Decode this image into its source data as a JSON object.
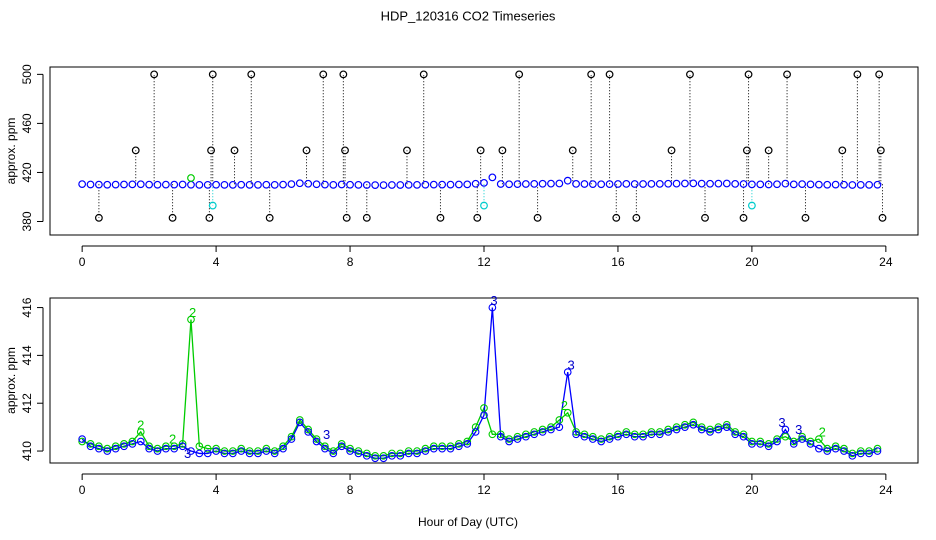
{
  "chart_data": [
    {
      "type": "scatter",
      "title": "HDP_120316  CO2 Timeseries",
      "ylabel": "approx. ppm",
      "xlim": [
        -0.96,
        24.96
      ],
      "xticks": [
        0,
        4,
        8,
        12,
        16,
        20,
        24
      ],
      "ylim": [
        369,
        506
      ],
      "yticks": [
        380,
        420,
        460,
        500
      ],
      "series": [
        {
          "color": "#0000ff",
          "stems": false,
          "x": [
            0,
            0.25,
            0.5,
            0.75,
            1,
            1.25,
            1.5,
            1.75,
            2,
            2.25,
            2.5,
            2.75,
            3,
            3.25,
            3.5,
            3.75,
            4,
            4.25,
            4.5,
            4.75,
            5,
            5.25,
            5.5,
            5.75,
            6,
            6.25,
            6.5,
            6.75,
            7,
            7.25,
            7.5,
            7.75,
            8,
            8.25,
            8.5,
            8.75,
            9,
            9.25,
            9.5,
            9.75,
            10,
            10.25,
            10.5,
            10.75,
            11,
            11.25,
            11.5,
            11.75,
            12,
            12.25,
            12.5,
            12.75,
            13,
            13.25,
            13.5,
            13.75,
            14,
            14.25,
            14.5,
            14.75,
            15,
            15.25,
            15.5,
            15.75,
            16,
            16.25,
            16.5,
            16.75,
            17,
            17.25,
            17.5,
            17.75,
            18,
            18.25,
            18.5,
            18.75,
            19,
            19.25,
            19.5,
            19.75,
            20,
            20.25,
            20.5,
            20.75,
            21,
            21.25,
            21.5,
            21.75,
            22,
            22.25,
            22.5,
            22.75,
            23,
            23.25,
            23.5,
            23.75
          ],
          "values": [
            410.5,
            410.2,
            410.1,
            410.0,
            410.1,
            410.2,
            410.3,
            410.4,
            410.1,
            410.0,
            410.1,
            410.1,
            410.2,
            410.0,
            409.9,
            409.9,
            410.0,
            409.9,
            409.9,
            410.0,
            409.9,
            409.9,
            410.0,
            409.9,
            410.1,
            410.5,
            411.2,
            410.8,
            410.4,
            410.1,
            409.9,
            410.2,
            410.0,
            409.9,
            409.8,
            409.7,
            409.7,
            409.8,
            409.8,
            409.9,
            409.9,
            410.0,
            410.1,
            410.1,
            410.1,
            410.2,
            410.3,
            410.8,
            411.5,
            416.0,
            410.6,
            410.4,
            410.5,
            410.6,
            410.7,
            410.8,
            410.9,
            411.0,
            413.3,
            410.7,
            410.6,
            410.5,
            410.4,
            410.5,
            410.6,
            410.7,
            410.6,
            410.6,
            410.7,
            410.7,
            410.8,
            410.9,
            411.0,
            411.1,
            410.9,
            410.8,
            410.9,
            411.0,
            410.7,
            410.6,
            410.3,
            410.3,
            410.2,
            410.4,
            410.9,
            410.3,
            410.5,
            410.3,
            410.1,
            410.0,
            410.1,
            410.0,
            409.8,
            409.9,
            409.9,
            410.0
          ]
        },
        {
          "color": "#00cc00",
          "stems": false,
          "x": [
            3.25
          ],
          "values": [
            415.5
          ]
        },
        {
          "color": "#00cccc",
          "stems": true,
          "x": [
            3.9,
            12.0,
            20.0
          ],
          "values": [
            393,
            393,
            393
          ]
        },
        {
          "color": "#000000",
          "stems": true,
          "x": [
            2.15,
            3.9,
            5.05,
            7.2,
            7.8,
            10.2,
            13.05,
            15.2,
            15.75,
            18.15,
            19.9,
            21.05,
            23.15,
            23.8,
            1.6,
            3.85,
            4.55,
            6.7,
            7.85,
            9.7,
            11.9,
            12.55,
            14.65,
            17.6,
            19.85,
            20.5,
            22.7,
            23.85,
            0.5,
            2.7,
            3.8,
            5.6,
            7.9,
            8.5,
            10.7,
            11.8,
            13.6,
            15.95,
            16.55,
            18.6,
            19.75,
            21.6,
            23.9
          ],
          "values": [
            500,
            500,
            500,
            500,
            500,
            500,
            500,
            500,
            500,
            500,
            500,
            500,
            500,
            500,
            438,
            438,
            438,
            438,
            438,
            438,
            438,
            438,
            438,
            438,
            438,
            438,
            438,
            438,
            383,
            383,
            383,
            383,
            383,
            383,
            383,
            383,
            383,
            383,
            383,
            383,
            383,
            383,
            383
          ]
        }
      ]
    },
    {
      "type": "line",
      "ylabel": "approx. ppm",
      "xlabel": "Hour of Day (UTC)",
      "xlim": [
        -0.96,
        24.96
      ],
      "xticks": [
        0,
        4,
        8,
        12,
        16,
        20,
        24
      ],
      "ylim": [
        409.5,
        416.4
      ],
      "yticks": [
        410,
        412,
        414,
        416
      ],
      "series": [
        {
          "color": "#00cc00",
          "x": [
            0,
            0.25,
            0.5,
            0.75,
            1,
            1.25,
            1.5,
            1.75,
            2,
            2.25,
            2.5,
            2.75,
            3,
            3.25,
            3.5,
            3.75,
            4,
            4.25,
            4.5,
            4.75,
            5,
            5.25,
            5.5,
            5.75,
            6,
            6.25,
            6.5,
            6.75,
            7,
            7.25,
            7.5,
            7.75,
            8,
            8.25,
            8.5,
            8.75,
            9,
            9.25,
            9.5,
            9.75,
            10,
            10.25,
            10.5,
            10.75,
            11,
            11.25,
            11.5,
            11.75,
            12,
            12.25,
            12.5,
            12.75,
            13,
            13.25,
            13.5,
            13.75,
            14,
            14.25,
            14.5,
            14.75,
            15,
            15.25,
            15.5,
            15.75,
            16,
            16.25,
            16.5,
            16.75,
            17,
            17.25,
            17.5,
            17.75,
            18,
            18.25,
            18.5,
            18.75,
            19,
            19.25,
            19.5,
            19.75,
            20,
            20.25,
            20.5,
            20.75,
            21,
            21.25,
            21.5,
            21.75,
            22,
            22.25,
            22.5,
            22.75,
            23,
            23.25,
            23.5,
            23.75
          ],
          "values": [
            410.4,
            410.3,
            410.2,
            410.1,
            410.2,
            410.3,
            410.4,
            410.8,
            410.2,
            410.1,
            410.2,
            410.2,
            410.3,
            415.5,
            410.2,
            410.1,
            410.1,
            410.0,
            410.0,
            410.1,
            410.0,
            410.0,
            410.1,
            410.0,
            410.2,
            410.6,
            411.3,
            410.9,
            410.5,
            410.2,
            410.0,
            410.3,
            410.1,
            410.0,
            409.9,
            409.8,
            409.8,
            409.9,
            409.9,
            410.0,
            410.0,
            410.1,
            410.2,
            410.2,
            410.2,
            410.3,
            410.4,
            411.0,
            411.8,
            410.7,
            410.7,
            410.5,
            410.6,
            410.7,
            410.8,
            410.9,
            411.0,
            411.3,
            411.6,
            410.8,
            410.7,
            410.6,
            410.5,
            410.6,
            410.7,
            410.8,
            410.7,
            410.7,
            410.8,
            410.8,
            410.9,
            411.0,
            411.1,
            411.2,
            411.0,
            410.9,
            411.0,
            411.1,
            410.8,
            410.7,
            410.4,
            410.4,
            410.3,
            410.5,
            410.6,
            410.4,
            410.6,
            410.4,
            410.5,
            410.1,
            410.2,
            410.1,
            409.9,
            410.0,
            410.0,
            410.1
          ]
        },
        {
          "color": "#0000ff",
          "x": [
            0,
            0.25,
            0.5,
            0.75,
            1,
            1.25,
            1.5,
            1.75,
            2,
            2.25,
            2.5,
            2.75,
            3,
            3.25,
            3.5,
            3.75,
            4,
            4.25,
            4.5,
            4.75,
            5,
            5.25,
            5.5,
            5.75,
            6,
            6.25,
            6.5,
            6.75,
            7,
            7.25,
            7.5,
            7.75,
            8,
            8.25,
            8.5,
            8.75,
            9,
            9.25,
            9.5,
            9.75,
            10,
            10.25,
            10.5,
            10.75,
            11,
            11.25,
            11.5,
            11.75,
            12,
            12.25,
            12.5,
            12.75,
            13,
            13.25,
            13.5,
            13.75,
            14,
            14.25,
            14.5,
            14.75,
            15,
            15.25,
            15.5,
            15.75,
            16,
            16.25,
            16.5,
            16.75,
            17,
            17.25,
            17.5,
            17.75,
            18,
            18.25,
            18.5,
            18.75,
            19,
            19.25,
            19.5,
            19.75,
            20,
            20.25,
            20.5,
            20.75,
            21,
            21.25,
            21.5,
            21.75,
            22,
            22.25,
            22.5,
            22.75,
            23,
            23.25,
            23.5,
            23.75
          ],
          "values": [
            410.5,
            410.2,
            410.1,
            410.0,
            410.1,
            410.2,
            410.3,
            410.4,
            410.1,
            410.0,
            410.1,
            410.1,
            410.2,
            410.0,
            409.9,
            409.9,
            410.0,
            409.9,
            409.9,
            410.0,
            409.9,
            409.9,
            410.0,
            409.9,
            410.1,
            410.5,
            411.2,
            410.8,
            410.4,
            410.1,
            409.9,
            410.2,
            410.0,
            409.9,
            409.8,
            409.7,
            409.7,
            409.8,
            409.8,
            409.9,
            409.9,
            410.0,
            410.1,
            410.1,
            410.1,
            410.2,
            410.3,
            410.8,
            411.5,
            416.0,
            410.6,
            410.4,
            410.5,
            410.6,
            410.7,
            410.8,
            410.9,
            411.0,
            413.3,
            410.7,
            410.6,
            410.5,
            410.4,
            410.5,
            410.6,
            410.7,
            410.6,
            410.6,
            410.7,
            410.7,
            410.8,
            410.9,
            411.0,
            411.1,
            410.9,
            410.8,
            410.9,
            411.0,
            410.7,
            410.6,
            410.3,
            410.3,
            410.2,
            410.4,
            410.9,
            410.3,
            410.5,
            410.3,
            410.1,
            410.0,
            410.1,
            410.0,
            409.8,
            409.9,
            409.9,
            410.0
          ]
        }
      ],
      "annotations": [
        {
          "x": 1.75,
          "y": 410.8,
          "text": "2",
          "color": "#00cc00"
        },
        {
          "x": 3.3,
          "y": 415.5,
          "text": "2",
          "color": "#00cc00"
        },
        {
          "x": 2.7,
          "y": 410.2,
          "text": "2",
          "color": "#00cc00"
        },
        {
          "x": 14.4,
          "y": 411.6,
          "text": "2",
          "color": "#00cc00"
        },
        {
          "x": 22.1,
          "y": 410.5,
          "text": "2",
          "color": "#00cc00"
        },
        {
          "x": 12.3,
          "y": 416.0,
          "text": "3",
          "color": "#0000cc"
        },
        {
          "x": 14.6,
          "y": 413.3,
          "text": "3",
          "color": "#0000cc"
        },
        {
          "x": 20.9,
          "y": 410.9,
          "text": "3",
          "color": "#0000cc"
        },
        {
          "x": 3.15,
          "y": 409.6,
          "text": "3",
          "color": "#0000cc"
        },
        {
          "x": 7.3,
          "y": 410.4,
          "text": "3",
          "color": "#0000cc"
        },
        {
          "x": 21.4,
          "y": 410.6,
          "text": "3",
          "color": "#0000cc"
        }
      ]
    }
  ]
}
